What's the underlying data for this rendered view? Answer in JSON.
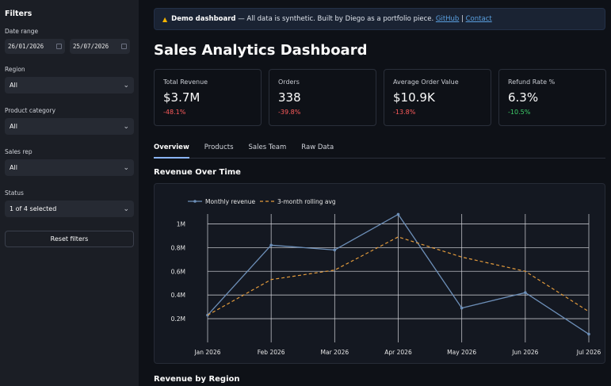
{
  "sidebar": {
    "title": "Filters",
    "date_range_label": "Date range",
    "date_start": "26/01/2026",
    "date_end": "25/07/2026",
    "region_label": "Region",
    "region_value": "All",
    "category_label": "Product category",
    "category_value": "All",
    "rep_label": "Sales rep",
    "rep_value": "All",
    "status_label": "Status",
    "status_value": "1 of 4 selected",
    "reset_label": "Reset filters"
  },
  "banner": {
    "icon": "warning-icon",
    "bold": "Demo dashboard",
    "text": " — All data is synthetic. Built by Diego as a portfolio piece. ",
    "github": "GitHub",
    "sep": " | ",
    "contact": "Contact"
  },
  "page_title": "Sales Analytics Dashboard",
  "metrics": [
    {
      "label": "Total Revenue",
      "value": "$3.7M",
      "delta": "-48.1%",
      "trend": "neg"
    },
    {
      "label": "Orders",
      "value": "338",
      "delta": "-39.8%",
      "trend": "neg"
    },
    {
      "label": "Average Order Value",
      "value": "$10.9K",
      "delta": "-13.8%",
      "trend": "neg"
    },
    {
      "label": "Refund Rate %",
      "value": "6.3%",
      "delta": "-10.5%",
      "trend": "pos"
    }
  ],
  "tabs": [
    "Overview",
    "Products",
    "Sales Team",
    "Raw Data"
  ],
  "active_tab": "Overview",
  "revenue_section_title": "Revenue Over Time",
  "region_section_title": "Revenue by Region",
  "colors": {
    "accent": "#8ab4f8",
    "negative": "#ff5b5b",
    "positive": "#3ecf6a",
    "series_line": "#6d8fb8",
    "series_avg": "#e39b3c"
  },
  "chart_data": {
    "type": "line",
    "x": [
      "Jan 2026",
      "Feb 2026",
      "Mar 2026",
      "Apr 2026",
      "May 2026",
      "Jun 2026",
      "Jul 2026"
    ],
    "series": [
      {
        "name": "Monthly revenue",
        "values": [
          0.23,
          0.82,
          0.78,
          1.08,
          0.29,
          0.42,
          0.07
        ]
      },
      {
        "name": "3-month rolling avg",
        "values": [
          0.23,
          0.53,
          0.61,
          0.89,
          0.72,
          0.6,
          0.26
        ]
      }
    ],
    "y_tick_values": [
      0.2,
      0.4,
      0.6,
      0.8,
      1.0
    ],
    "y_tick_labels": [
      "0.2M",
      "0.4M",
      "0.6M",
      "0.8M",
      "1M"
    ],
    "ylim": [
      0,
      1.15
    ],
    "grid": true,
    "legend": "top-left"
  }
}
